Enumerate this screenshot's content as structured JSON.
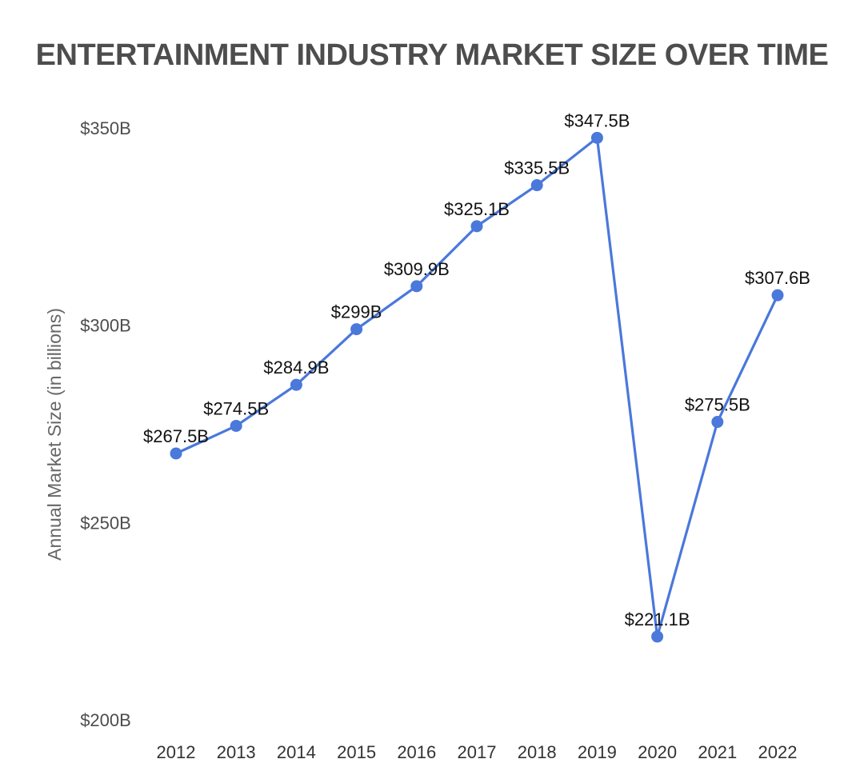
{
  "chart_data": {
    "type": "line",
    "title": "ENTERTAINMENT INDUSTRY MARKET SIZE OVER TIME",
    "xlabel": "",
    "ylabel": "Annual Market Size (in billions)",
    "categories": [
      "2012",
      "2013",
      "2014",
      "2015",
      "2016",
      "2017",
      "2018",
      "2019",
      "2020",
      "2021",
      "2022"
    ],
    "series": [
      {
        "values": [
          267.5,
          274.5,
          284.9,
          299,
          309.9,
          325.1,
          335.5,
          347.5,
          221.1,
          275.5,
          307.6
        ],
        "data_labels": [
          "$267.5B",
          "$274.5B",
          "$284.9B",
          "$299B",
          "$309.9B",
          "$325.1B",
          "$335.5B",
          "$347.5B",
          "$221.1B",
          "$275.5B",
          "$307.6B"
        ]
      }
    ],
    "ylim": [
      200,
      350
    ],
    "yticks": [
      200,
      250,
      300,
      350
    ],
    "ytick_labels": [
      "$200B",
      "$250B",
      "$300B",
      "$350B"
    ],
    "grid": false,
    "legend": "none",
    "line_color": "#4a78db",
    "marker_color": "#4a78db"
  }
}
